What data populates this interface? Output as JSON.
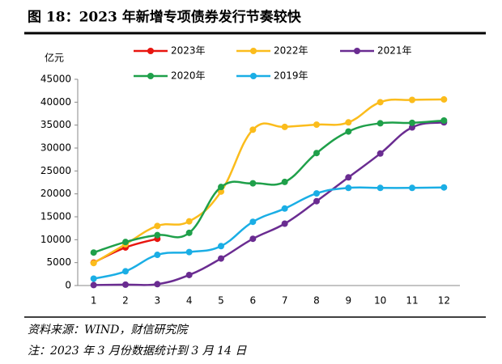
{
  "chart_data": {
    "type": "line",
    "title": "图 18：2023 年新增专项债券发行节奏较快",
    "y_label": "亿元",
    "categories": [
      1,
      2,
      3,
      4,
      5,
      6,
      7,
      8,
      9,
      10,
      11,
      12
    ],
    "series": [
      {
        "name": "2023年",
        "color": "#e8150f",
        "values": [
          5000,
          8300,
          10200,
          null,
          null,
          null,
          null,
          null,
          null,
          null,
          null,
          null
        ]
      },
      {
        "name": "2022年",
        "color": "#fbbc1c",
        "values": [
          4900,
          9000,
          13000,
          14000,
          20500,
          34000,
          34600,
          35100,
          35600,
          40000,
          40500,
          40600
        ]
      },
      {
        "name": "2021年",
        "color": "#6a2c91",
        "values": [
          100,
          200,
          300,
          2300,
          5900,
          10200,
          13500,
          18400,
          23600,
          28800,
          34500,
          35600
        ]
      },
      {
        "name": "2020年",
        "color": "#1fa04a",
        "values": [
          7200,
          9500,
          11000,
          11500,
          21500,
          22300,
          22600,
          28900,
          33600,
          35400,
          35500,
          36000
        ]
      },
      {
        "name": "2019年",
        "color": "#1aaee5",
        "values": [
          1500,
          3100,
          6700,
          7300,
          8600,
          13900,
          16800,
          20100,
          21300,
          21300,
          21300,
          21400
        ]
      }
    ],
    "ylim": [
      0,
      45000
    ],
    "yticks": [
      0,
      5000,
      10000,
      15000,
      20000,
      25000,
      30000,
      35000,
      40000,
      45000
    ],
    "source": "资料来源：WIND，财信研究院",
    "note": "注：2023 年 3 月份数据统计到 3 月 14 日"
  }
}
